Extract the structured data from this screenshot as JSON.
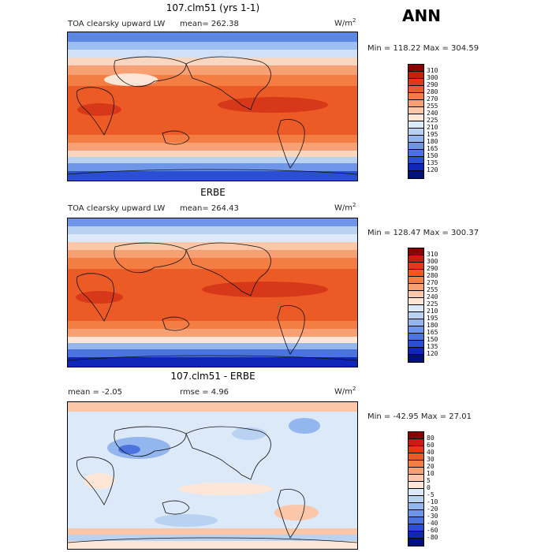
{
  "season": "ANN",
  "units_base": "W/m",
  "units_exp": "2",
  "panels": [
    {
      "title": "107.clm51 (yrs 1-1)",
      "left_label": "TOA clearsky upward LW",
      "mean_label": "mean= 262.38",
      "minmax": "Min = 118.22 Max = 304.59",
      "type": "field"
    },
    {
      "title": "ERBE",
      "left_label": "TOA clearsky upward LW",
      "mean_label": "mean= 264.43",
      "minmax": "Min = 128.47 Max = 300.37",
      "type": "field"
    },
    {
      "title": "107.clm51 - ERBE",
      "left_label": "mean =  -2.05",
      "mean_label": "rmse =   4.96",
      "minmax": "Min = -42.95 Max =  27.01",
      "type": "diff"
    }
  ],
  "field_levels": [
    "310",
    "300",
    "290",
    "280",
    "270",
    "255",
    "240",
    "225",
    "210",
    "195",
    "180",
    "165",
    "150",
    "135",
    "120"
  ],
  "diff_levels": [
    "80",
    "60",
    "40",
    "30",
    "20",
    "10",
    "5",
    "0",
    "-5",
    "-10",
    "-20",
    "-30",
    "-40",
    "-60",
    "-80"
  ],
  "colors": [
    "#8b0000",
    "#c81e0e",
    "#e03a16",
    "#ec5a25",
    "#f47d44",
    "#f7a073",
    "#fbc7a8",
    "#fde6d6",
    "#dce9f8",
    "#b9d2f2",
    "#93b6ee",
    "#6e95e8",
    "#4a73e0",
    "#2a4fd4",
    "#1026b8",
    "#00127a"
  ]
}
